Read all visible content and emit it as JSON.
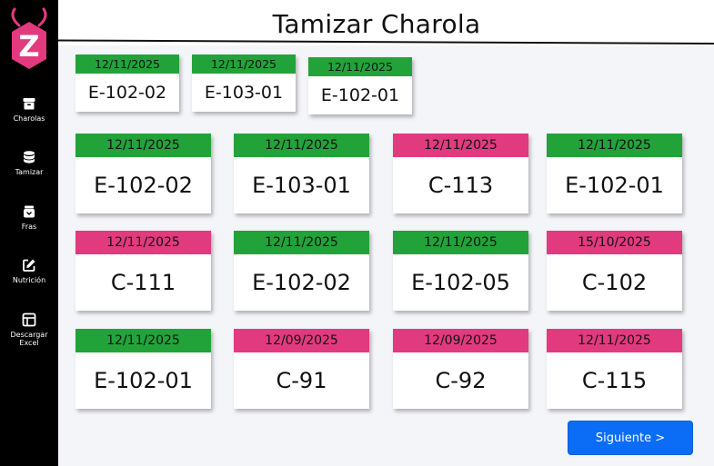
{
  "header": {
    "title": "Tamizar Charola"
  },
  "colors": {
    "green": "#22a33a",
    "pink": "#e23a7e",
    "accent": "#0b6df5",
    "logo": "#e23a7e"
  },
  "logo": {
    "letter": "Z",
    "icon": "ant-logo-icon"
  },
  "sidebar": {
    "items": [
      {
        "label": "Charolas",
        "icon": "archive-box-icon"
      },
      {
        "label": "Tamizar",
        "icon": "database-icon"
      },
      {
        "label": "Fras",
        "icon": "jar-icon"
      },
      {
        "label": "Nutrición",
        "icon": "edit-icon"
      },
      {
        "label": "Descargar Excel",
        "icon": "table-icon"
      }
    ]
  },
  "selected": [
    {
      "date": "12/11/2025",
      "code": "E-102-02",
      "status": "green"
    },
    {
      "date": "12/11/2025",
      "code": "E-103-01",
      "status": "green"
    },
    {
      "date": "12/11/2025",
      "code": "E-102-01",
      "status": "green"
    }
  ],
  "trays": [
    {
      "date": "12/11/2025",
      "code": "E-102-02",
      "status": "green"
    },
    {
      "date": "12/11/2025",
      "code": "E-103-01",
      "status": "green"
    },
    {
      "date": "12/11/2025",
      "code": "C-113",
      "status": "pink"
    },
    {
      "date": "12/11/2025",
      "code": "E-102-01",
      "status": "green"
    },
    {
      "date": "12/11/2025",
      "code": "C-111",
      "status": "pink"
    },
    {
      "date": "12/11/2025",
      "code": "E-102-02",
      "status": "green"
    },
    {
      "date": "12/11/2025",
      "code": "E-102-05",
      "status": "green"
    },
    {
      "date": "15/10/2025",
      "code": "C-102",
      "status": "pink"
    },
    {
      "date": "12/11/2025",
      "code": "E-102-01",
      "status": "green"
    },
    {
      "date": "12/09/2025",
      "code": "C-91",
      "status": "pink"
    },
    {
      "date": "12/09/2025",
      "code": "C-92",
      "status": "pink"
    },
    {
      "date": "12/11/2025",
      "code": "C-115",
      "status": "pink"
    }
  ],
  "actions": {
    "next_label": "Siguiente >"
  }
}
